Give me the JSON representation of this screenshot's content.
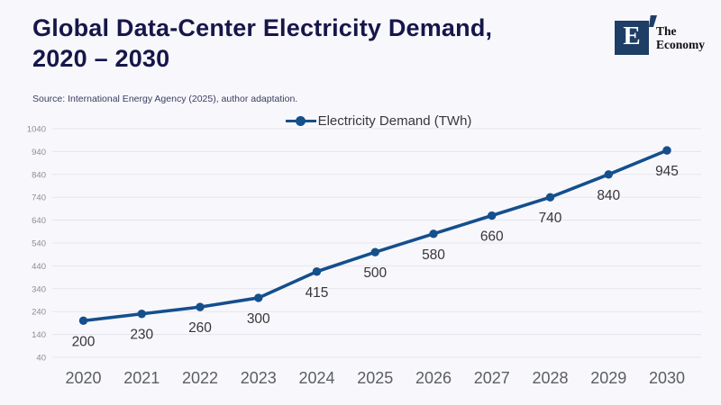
{
  "header": {
    "title_line1": "Global Data-Center Electricity Demand,",
    "title_line2": "2020 – 2030",
    "source": "Source: International Energy Agency (2025), author adaptation.",
    "logo": {
      "letter": "E",
      "name_line1": "The",
      "name_line2": "Economy"
    }
  },
  "legend": {
    "label": "Electricity Demand (TWh)"
  },
  "colors": {
    "background": "#f8f8fc",
    "title_text": "#16164a",
    "line": "#154f8c",
    "grid": "#e4e4ec",
    "y_tick_text": "#8b8b93",
    "x_tick_text": "#5a5e63",
    "data_label_text": "#36363a",
    "logo_square": "#1e3e66"
  },
  "chart_data": {
    "type": "line",
    "title": "Global Data-Center Electricity Demand, 2020 – 2030",
    "categories": [
      "2020",
      "2021",
      "2022",
      "2023",
      "2024",
      "2025",
      "2026",
      "2027",
      "2028",
      "2029",
      "2030"
    ],
    "series": [
      {
        "name": "Electricity Demand (TWh)",
        "values": [
          200,
          230,
          260,
          300,
          415,
          500,
          580,
          660,
          740,
          840,
          945
        ]
      }
    ],
    "xlabel": "",
    "ylabel": "",
    "ylim": [
      40,
      1040
    ],
    "ytick_step": 100,
    "y_ticks": [
      40,
      140,
      240,
      340,
      440,
      540,
      640,
      740,
      840,
      940,
      1040
    ],
    "grid": "horizontal",
    "legend_position": "top-center",
    "data_labels": true
  }
}
